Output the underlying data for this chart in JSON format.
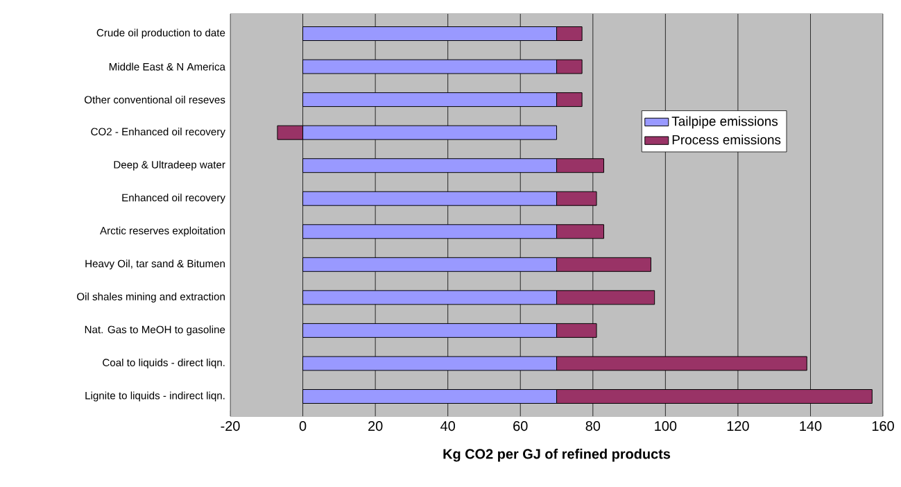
{
  "chart_data": {
    "type": "bar",
    "orientation": "horizontal",
    "stacked": true,
    "categories": [
      "Crude oil production to date",
      "Middle East & N America",
      "Other conventional oil reseves",
      "CO2 - Enhanced oil recovery",
      "Deep & Ultradeep water",
      "Enhanced oil recovery",
      "Arctic reserves exploitation",
      "Heavy Oil, tar sand & Bitumen",
      "Oil shales mining and extraction",
      "Nat. Gas to MeOH to gasoline",
      "Coal to liquids - direct liqn.",
      "Lignite to liquids - indirect liqn."
    ],
    "series": [
      {
        "name": "Tailpipe emissions",
        "color": "#9999ff",
        "values": [
          70,
          70,
          70,
          70,
          70,
          70,
          70,
          70,
          70,
          70,
          70,
          70
        ]
      },
      {
        "name": "Process emissions",
        "color": "#993366",
        "values": [
          7,
          7,
          7,
          -7,
          13,
          11,
          13,
          26,
          27,
          11,
          69,
          87
        ]
      }
    ],
    "xlabel": "Kg CO2 per GJ of refined products",
    "xlim": [
      -20,
      160
    ],
    "xticks": [
      -20,
      0,
      20,
      40,
      60,
      80,
      100,
      120,
      140,
      160
    ],
    "grid": "x",
    "legend": "right"
  }
}
